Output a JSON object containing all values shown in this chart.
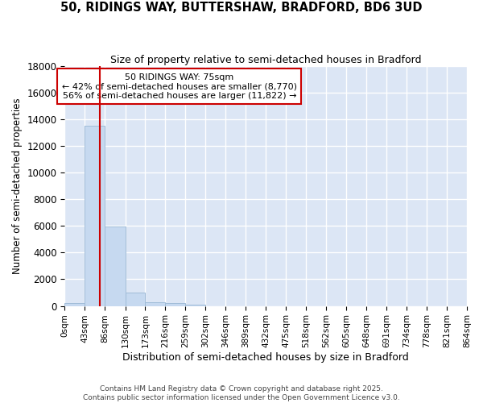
{
  "title": "50, RIDINGS WAY, BUTTERSHAW, BRADFORD, BD6 3UD",
  "subtitle": "Size of property relative to semi-detached houses in Bradford",
  "xlabel": "Distribution of semi-detached houses by size in Bradford",
  "ylabel": "Number of semi-detached properties",
  "bar_color": "#c6d9f0",
  "bar_edge_color": "#a0bcd8",
  "background_color": "#dce6f5",
  "grid_color": "#ffffff",
  "bin_edges": [
    0,
    43,
    86,
    130,
    173,
    216,
    259,
    302,
    346,
    389,
    432,
    475,
    518,
    562,
    605,
    648,
    691,
    734,
    778,
    821,
    864
  ],
  "bin_labels": [
    "0sqm",
    "43sqm",
    "86sqm",
    "130sqm",
    "173sqm",
    "216sqm",
    "259sqm",
    "302sqm",
    "346sqm",
    "389sqm",
    "432sqm",
    "475sqm",
    "518sqm",
    "562sqm",
    "605sqm",
    "648sqm",
    "691sqm",
    "734sqm",
    "778sqm",
    "821sqm",
    "864sqm"
  ],
  "bar_heights": [
    200,
    13500,
    5950,
    1000,
    300,
    200,
    100,
    0,
    0,
    0,
    0,
    0,
    0,
    0,
    0,
    0,
    0,
    0,
    0,
    0
  ],
  "property_size": 75,
  "property_label": "50 RIDINGS WAY: 75sqm",
  "pct_smaller": 42,
  "n_smaller": 8770,
  "pct_larger": 56,
  "n_larger": 11822,
  "vline_color": "#cc0000",
  "ylim": [
    0,
    18000
  ],
  "yticks": [
    0,
    2000,
    4000,
    6000,
    8000,
    10000,
    12000,
    14000,
    16000,
    18000
  ],
  "fig_facecolor": "#ffffff",
  "footer_line1": "Contains HM Land Registry data © Crown copyright and database right 2025.",
  "footer_line2": "Contains public sector information licensed under the Open Government Licence v3.0."
}
